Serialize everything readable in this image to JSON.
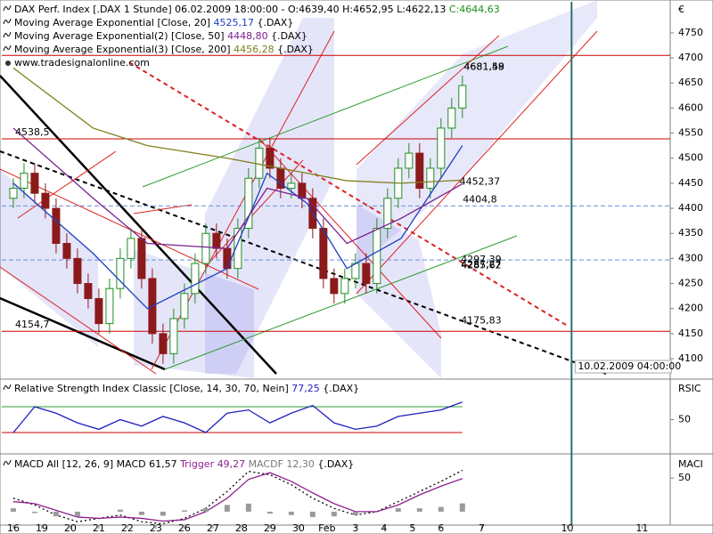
{
  "chart_data": [
    {
      "type": "candlestick",
      "title": "DAX Perf. Index [.DAX 1 Stunde] 06.02.2009 18:00:00 - O:4639,40 H:4652,95 L:4622,13",
      "title_close": "C:4644,63",
      "source": "www.tradesignalonline.com",
      "legend_suffix": "{.DAX}",
      "axis_label": "€",
      "xlim": [
        -0.405,
        23.04
      ],
      "ylim": [
        4061,
        4812
      ],
      "yticks": [
        4100,
        4150,
        4200,
        4250,
        4300,
        4350,
        4400,
        4450,
        4500,
        4550,
        4600,
        4650,
        4700,
        4750
      ],
      "grid": true,
      "up_color": "#1f8f1f",
      "down_color": "#8b1a1a",
      "candles": {
        "x": [
          0,
          0.375,
          0.75,
          1.125,
          1.5,
          1.875,
          2.25,
          2.625,
          3,
          3.375,
          3.75,
          4.125,
          4.5,
          4.875,
          5.25,
          5.625,
          6,
          6.375,
          6.75,
          7.125,
          7.5,
          7.875,
          8.25,
          8.625,
          9,
          9.375,
          9.75,
          10.125,
          10.5,
          10.875,
          11.25,
          11.625,
          12,
          12.375,
          12.75,
          13.125,
          13.5,
          13.875,
          14.25,
          14.625,
          15,
          15.375,
          15.75
        ],
        "open": [
          4420,
          4440,
          4470,
          4430,
          4400,
          4330,
          4300,
          4250,
          4220,
          4170,
          4240,
          4300,
          4340,
          4260,
          4150,
          4110,
          4180,
          4230,
          4290,
          4350,
          4320,
          4280,
          4360,
          4460,
          4520,
          4480,
          4440,
          4450,
          4420,
          4360,
          4260,
          4230,
          4260,
          4290,
          4250,
          4360,
          4420,
          4480,
          4510,
          4440,
          4480,
          4560,
          4600
        ],
        "high": [
          4460,
          4490,
          4490,
          4450,
          4420,
          4350,
          4320,
          4270,
          4240,
          4260,
          4320,
          4360,
          4360,
          4280,
          4170,
          4200,
          4250,
          4310,
          4370,
          4370,
          4340,
          4380,
          4480,
          4540,
          4540,
          4500,
          4470,
          4470,
          4440,
          4380,
          4280,
          4280,
          4310,
          4310,
          4380,
          4440,
          4500,
          4530,
          4530,
          4500,
          4580,
          4620,
          4665
        ],
        "low": [
          4400,
          4420,
          4410,
          4380,
          4310,
          4280,
          4230,
          4200,
          4150,
          4150,
          4220,
          4280,
          4240,
          4130,
          4090,
          4090,
          4160,
          4210,
          4270,
          4300,
          4260,
          4260,
          4340,
          4440,
          4460,
          4420,
          4420,
          4400,
          4340,
          4240,
          4210,
          4210,
          4240,
          4230,
          4230,
          4340,
          4400,
          4460,
          4420,
          4420,
          4460,
          4540,
          4580
        ],
        "close": [
          4440,
          4470,
          4430,
          4400,
          4330,
          4300,
          4250,
          4220,
          4170,
          4240,
          4300,
          4340,
          4260,
          4150,
          4110,
          4180,
          4230,
          4290,
          4350,
          4320,
          4280,
          4360,
          4460,
          4520,
          4480,
          4440,
          4450,
          4420,
          4360,
          4260,
          4230,
          4260,
          4290,
          4250,
          4360,
          4420,
          4480,
          4510,
          4440,
          4480,
          4560,
          4600,
          4645
        ]
      },
      "series": [
        {
          "name": "Moving Average Exponential [Close, 20]",
          "color": "#1f3fbf",
          "value_label": "4525,17",
          "x": [
            0,
            2.8,
            4.7,
            7.5,
            8.9,
            10.3,
            11.7,
            13.6,
            15.75
          ],
          "values": [
            4450,
            4310,
            4200,
            4280,
            4470,
            4410,
            4280,
            4340,
            4525.17
          ]
        },
        {
          "name": "Moving Average Exponential(2) [Close, 50]",
          "color": "#7a1f8f",
          "value_label": "4448,80",
          "x": [
            0,
            2.8,
            4.7,
            7.5,
            8.9,
            10.3,
            11.7,
            13.6,
            15.75
          ],
          "values": [
            4560,
            4420,
            4330,
            4320,
            4440,
            4420,
            4330,
            4380,
            4448.8
          ]
        },
        {
          "name": "Moving Average Exponential(3) [Close, 200]",
          "color": "#7f7f1f",
          "value_label": "4456,28",
          "x": [
            0,
            2.8,
            4.7,
            7.5,
            8.9,
            10.3,
            11.7,
            13.6,
            15.75
          ],
          "values": [
            4680,
            4560,
            4525,
            4500,
            4485,
            4470,
            4455,
            4450,
            4456.28
          ]
        }
      ],
      "hlines": [
        {
          "value": 4705,
          "color": "#cc0000"
        },
        {
          "value": 4538.5,
          "label": "4538,5",
          "x": 0,
          "color": "#cc0000"
        },
        {
          "value": 4404.8,
          "label": "4404,8",
          "x": 15.7,
          "color": "#6b8fd6",
          "dashed": true
        },
        {
          "value": 4297,
          "color": "#6b8fd6",
          "dashed": true
        },
        {
          "value": 4154.7,
          "label": "4154,7",
          "x": 0,
          "color": "#cc0000"
        }
      ],
      "annotations": [
        {
          "value": 4681.58,
          "label": "4681,58",
          "x": 15.8,
          "color": "#2e9e2e"
        },
        {
          "value": 4681.49,
          "label": "4681,49",
          "x": 15.8,
          "color": "#cc0000"
        },
        {
          "value": 4452.37,
          "label": "4452,37",
          "x": 15.65,
          "color": "#cc0000"
        },
        {
          "value": 4297.39,
          "label": "4297,39",
          "x": 15.7,
          "color": "#6b8fd6"
        },
        {
          "value": 4287.27,
          "label": "4287,27",
          "x": 15.7,
          "color": "#cc0000"
        },
        {
          "value": 4285.62,
          "label": "4285,62",
          "x": 15.7,
          "color": "#2e9e2e"
        },
        {
          "value": 4175.83,
          "label": "4175,83",
          "x": 15.7,
          "color": "#000000"
        }
      ],
      "cursor": {
        "x": 19.58,
        "label": "10.02.2009 04:00:00",
        "color": "#2f6f6f"
      }
    },
    {
      "type": "line",
      "title": "Relative Strength Index Classic [Close, 14, 30, 70, Nein]",
      "legend_suffix": "{.DAX}",
      "axis_label": "RSIC",
      "xlim": [
        -0.405,
        23.04
      ],
      "ylim": [
        3.8,
        110
      ],
      "yticks": [
        50
      ],
      "grid": true,
      "hlines": [
        {
          "value": 70,
          "color": "#2e9e2e"
        },
        {
          "value": 30,
          "color": "#cc0000"
        }
      ],
      "series": [
        {
          "name": "RSI",
          "color": "#1f1fbf",
          "value_label": "77,25",
          "x": [
            0,
            0.75,
            1.5,
            2.25,
            3,
            3.75,
            4.5,
            5.25,
            6,
            6.75,
            7.5,
            8.25,
            9,
            9.75,
            10.5,
            11.25,
            12,
            12.75,
            13.5,
            14.25,
            15,
            15.75
          ],
          "values": [
            30,
            70,
            60,
            45,
            35,
            50,
            40,
            55,
            45,
            30,
            60,
            65,
            45,
            60,
            72,
            45,
            35,
            40,
            55,
            60,
            65,
            77.25
          ]
        }
      ]
    },
    {
      "type": "line",
      "title": "MACD All [12, 26, 9]",
      "legend_suffix": "{.DAX}",
      "axis_label": "MACI",
      "xlim": [
        -0.405,
        23.04
      ],
      "ylim": [
        -20,
        82
      ],
      "yticks": [
        50
      ],
      "grid": true,
      "xticks": [
        {
          "value": 0,
          "label": "16"
        },
        {
          "value": 1,
          "label": "19"
        },
        {
          "value": 2,
          "label": "20"
        },
        {
          "value": 3,
          "label": "21"
        },
        {
          "value": 4,
          "label": "22"
        },
        {
          "value": 5,
          "label": "23"
        },
        {
          "value": 6,
          "label": "26"
        },
        {
          "value": 7,
          "label": "27"
        },
        {
          "value": 8,
          "label": "28"
        },
        {
          "value": 9,
          "label": "29"
        },
        {
          "value": 10,
          "label": "30"
        },
        {
          "value": 11,
          "label": "Feb"
        },
        {
          "value": 12,
          "label": "3"
        },
        {
          "value": 13,
          "label": "4"
        },
        {
          "value": 14,
          "label": "5"
        },
        {
          "value": 15,
          "label": "6"
        },
        {
          "value": 16.43,
          "label": "7"
        },
        {
          "value": 19.43,
          "label": "10"
        },
        {
          "value": 22.05,
          "label": "11"
        }
      ],
      "series": [
        {
          "name": "MACD",
          "color": "#000000",
          "dashed": true,
          "value_label": "61,57",
          "x": [
            0,
            0.75,
            1.5,
            2.25,
            3,
            3.75,
            4.5,
            5.25,
            6,
            6.75,
            7.5,
            8.25,
            9,
            9.75,
            10.5,
            11.25,
            12,
            12.75,
            13.5,
            14.25,
            15,
            15.75
          ],
          "values": [
            20,
            10,
            -5,
            -15,
            -10,
            -5,
            -15,
            -18,
            -10,
            5,
            30,
            60,
            55,
            40,
            20,
            5,
            -5,
            0,
            15,
            30,
            45,
            61.57
          ]
        },
        {
          "name": "Trigger",
          "color": "#8f1f8f",
          "value_label": "49,27",
          "x": [
            0,
            0.75,
            1.5,
            2.25,
            3,
            3.75,
            4.5,
            5.25,
            6,
            6.75,
            7.5,
            8.25,
            9,
            9.75,
            10.5,
            11.25,
            12,
            12.75,
            13.5,
            14.25,
            15,
            15.75
          ],
          "values": [
            15,
            12,
            2,
            -8,
            -10,
            -8,
            -10,
            -14,
            -12,
            0,
            20,
            48,
            58,
            45,
            28,
            12,
            0,
            0,
            10,
            25,
            38,
            49.27
          ]
        },
        {
          "name": "MACDF",
          "color": "#9a9a9a",
          "kind": "bar",
          "value_label": "12,30",
          "x": [
            0,
            0.75,
            1.5,
            2.25,
            3,
            3.75,
            4.5,
            5.25,
            6,
            6.75,
            7.5,
            8.25,
            9,
            9.75,
            10.5,
            11.25,
            12,
            12.75,
            13.5,
            14.25,
            15,
            15.75
          ],
          "values": [
            5,
            -2,
            -7,
            -7,
            0,
            3,
            -5,
            -6,
            2,
            5,
            10,
            12,
            -3,
            -5,
            -8,
            -7,
            -5,
            0,
            5,
            5,
            7,
            12.3
          ]
        }
      ]
    }
  ]
}
